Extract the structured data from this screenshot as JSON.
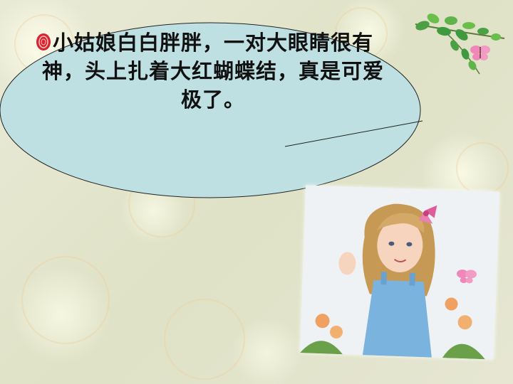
{
  "bubble": {
    "lines": [
      "小姑娘白白胖胖，一对大眼睛很有",
      "神，头上扎着大红蝴蝶结，真是可爱",
      "极了。"
    ]
  },
  "colors": {
    "bubble_fill": "#bfe0e2",
    "background": "#e4e6cf",
    "bullet": "#d9232d",
    "leaf": "#3f9a3f",
    "butterfly": "#ef88b8"
  },
  "icons": {
    "bullet": "red-bullet-icon",
    "corner": "leaf-branch-butterfly-icon",
    "photo": "girl-illustration"
  }
}
